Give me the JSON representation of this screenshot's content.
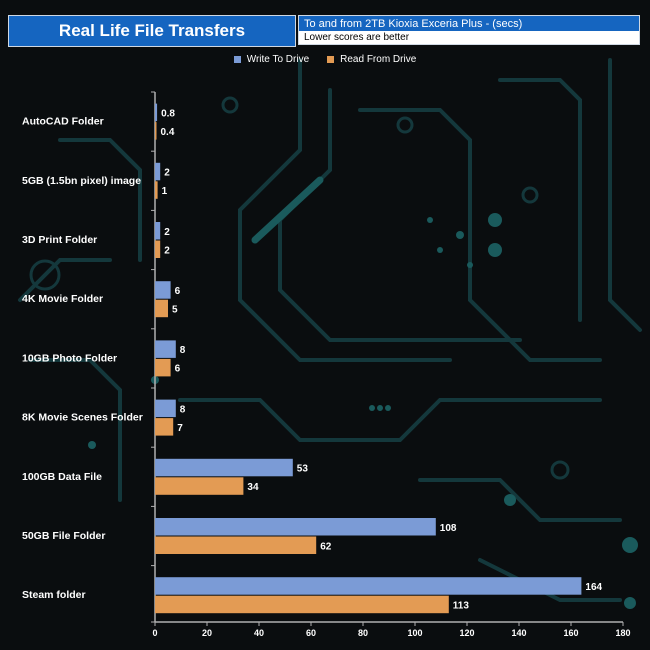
{
  "header": {
    "title": "Real Life File Transfers",
    "subtitle": "To and from 2TB Kioxia Exceria Plus - (secs)",
    "note": "Lower scores are better"
  },
  "colors": {
    "write": "#7b9bd6",
    "read": "#e39b54",
    "title_bg": "#1565c0",
    "label": "#ffffff"
  },
  "legend": {
    "write_label": "Write To  Drive",
    "read_label": "Read From  Drive"
  },
  "chart_data": {
    "type": "bar",
    "orientation": "horizontal",
    "title": "Real Life File Transfers",
    "subtitle": "To and from 2TB Kioxia Exceria Plus - (secs)",
    "categories": [
      "AutoCAD Folder",
      "5GB (1.5bn pixel) image",
      "3D Print Folder",
      "4K Movie Folder",
      "10GB Photo Folder",
      "8K Movie Scenes Folder",
      "100GB Data File",
      "50GB File Folder",
      "Steam folder"
    ],
    "series": [
      {
        "name": "Write To  Drive",
        "values": [
          0.8,
          2,
          2,
          6,
          8,
          8,
          53,
          108,
          164
        ]
      },
      {
        "name": "Read From  Drive",
        "values": [
          0.4,
          1,
          2,
          5,
          6,
          7,
          34,
          62,
          113
        ]
      }
    ],
    "xlim": [
      0,
      180
    ],
    "xticks": [
      0,
      20,
      40,
      60,
      80,
      100,
      120,
      140,
      160,
      180
    ],
    "xlabel": "",
    "ylabel": "",
    "legend_position": "top"
  }
}
